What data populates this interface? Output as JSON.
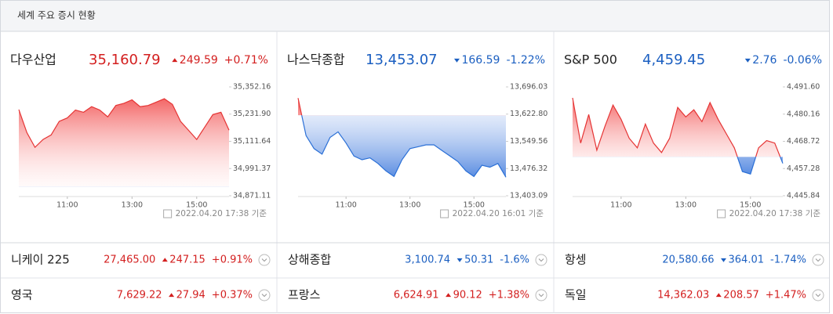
{
  "header": {
    "title": "세계 주요 증시 현황"
  },
  "panels": [
    {
      "name": "다우산업",
      "price": "35,160.79",
      "change": "249.59",
      "percent": "+0.71%",
      "timestamp": "2022.04.20 17:38 기준",
      "chart": {
        "type": "line",
        "x": [
          9.5,
          9.75,
          10,
          10.25,
          10.5,
          10.75,
          11,
          11.25,
          11.5,
          11.75,
          12,
          12.25,
          12.5,
          12.75,
          13,
          13.25,
          13.5,
          13.75,
          14,
          14.25,
          14.5,
          14.75,
          15,
          15.25,
          15.5,
          15.75,
          16
        ],
        "values": [
          35252,
          35150,
          35085,
          35120,
          35140,
          35200,
          35215,
          35250,
          35240,
          35265,
          35250,
          35220,
          35270,
          35280,
          35295,
          35265,
          35270,
          35285,
          35300,
          35275,
          35200,
          35160,
          35120,
          35175,
          35230,
          35240,
          35160.79
        ],
        "xlim": [
          9.5,
          16
        ],
        "xticks": [
          {
            "value": 11,
            "label": "11:00"
          },
          {
            "value": 13,
            "label": "13:00"
          },
          {
            "value": 15,
            "label": "15:00"
          }
        ],
        "ylim": [
          34871.11,
          35352.16
        ],
        "yticks": [
          {
            "value": 35352.16,
            "label": "35,352.16"
          },
          {
            "value": 35231.9,
            "label": "35,231.90"
          },
          {
            "value": 35111.64,
            "label": "35,111.64"
          },
          {
            "value": 34991.37,
            "label": "34,991.37"
          },
          {
            "value": 34871.11,
            "label": "34,871.11"
          }
        ]
      }
    },
    {
      "name": "나스닥종합",
      "price": "13,453.07",
      "change": "166.59",
      "percent": "-1.22%",
      "timestamp": "2022.04.20 16:01 기준",
      "chart": {
        "type": "line",
        "x": [
          9.5,
          9.75,
          10,
          10.25,
          10.5,
          10.75,
          11,
          11.25,
          11.5,
          11.75,
          12,
          12.25,
          12.5,
          12.75,
          13,
          13.25,
          13.5,
          13.75,
          14,
          14.25,
          14.5,
          14.75,
          15,
          15.25,
          15.5,
          15.75,
          16
        ],
        "values": [
          13666,
          13565,
          13530,
          13515,
          13560,
          13575,
          13545,
          13510,
          13500,
          13505,
          13490,
          13470,
          13455,
          13500,
          13530,
          13535,
          13540,
          13540,
          13525,
          13510,
          13495,
          13470,
          13455,
          13485,
          13480,
          13490,
          13453.07
        ],
        "xlim": [
          9.5,
          16
        ],
        "xticks": [
          {
            "value": 11,
            "label": "11:00"
          },
          {
            "value": 13,
            "label": "13:00"
          },
          {
            "value": 15,
            "label": "15:00"
          }
        ],
        "ylim": [
          13403.09,
          13696.03
        ],
        "yticks": [
          {
            "value": 13696.03,
            "label": "13,696.03"
          },
          {
            "value": 13622.8,
            "label": "13,622.80"
          },
          {
            "value": 13549.56,
            "label": "13,549.56"
          },
          {
            "value": 13476.32,
            "label": "13,476.32"
          },
          {
            "value": 13403.09,
            "label": "13,403.09"
          }
        ]
      }
    },
    {
      "name": "S&P 500",
      "price": "4,459.45",
      "change": "2.76",
      "percent": "-0.06%",
      "timestamp": "2022.04.20 17:38 기준",
      "chart": {
        "type": "line",
        "x": [
          9.5,
          9.75,
          10,
          10.25,
          10.5,
          10.75,
          11,
          11.25,
          11.5,
          11.75,
          12,
          12.25,
          12.5,
          12.75,
          13,
          13.25,
          13.5,
          13.75,
          14,
          14.25,
          14.5,
          14.75,
          15,
          15.25,
          15.5,
          15.75,
          16
        ],
        "values": [
          4487,
          4468,
          4480,
          4465,
          4475,
          4484,
          4478,
          4470,
          4466,
          4476,
          4468,
          4464,
          4470,
          4483,
          4479,
          4482,
          4477,
          4485,
          4478,
          4472,
          4466,
          4456,
          4455,
          4466,
          4469,
          4468,
          4459.45
        ],
        "xlim": [
          9.5,
          16
        ],
        "xticks": [
          {
            "value": 11,
            "label": "11:00"
          },
          {
            "value": 13,
            "label": "13:00"
          },
          {
            "value": 15,
            "label": "15:00"
          }
        ],
        "ylim": [
          4445.84,
          4491.6
        ],
        "yticks": [
          {
            "value": 4491.6,
            "label": "4,491.60"
          },
          {
            "value": 4480.16,
            "label": "4,480.16"
          },
          {
            "value": 4468.72,
            "label": "4,468.72"
          },
          {
            "value": 4457.28,
            "label": "4,457.28"
          },
          {
            "value": 4445.84,
            "label": "4,445.84"
          }
        ]
      }
    }
  ],
  "rows": [
    [
      {
        "name": "니케이 225",
        "price": "27,465.00",
        "change": "247.15",
        "percent": "+0.91%"
      },
      {
        "name": "상해종합",
        "price": "3,100.74",
        "change": "50.31",
        "percent": "-1.6%"
      },
      {
        "name": "항셍",
        "price": "20,580.66",
        "change": "364.01",
        "percent": "-1.74%"
      }
    ],
    [
      {
        "name": "영국",
        "price": "7,629.22",
        "change": "27.94",
        "percent": "+0.37%"
      },
      {
        "name": "프랑스",
        "price": "6,624.91",
        "change": "90.12",
        "percent": "+1.38%"
      },
      {
        "name": "독일",
        "price": "14,362.03",
        "change": "208.57",
        "percent": "+1.47%"
      }
    ]
  ]
}
